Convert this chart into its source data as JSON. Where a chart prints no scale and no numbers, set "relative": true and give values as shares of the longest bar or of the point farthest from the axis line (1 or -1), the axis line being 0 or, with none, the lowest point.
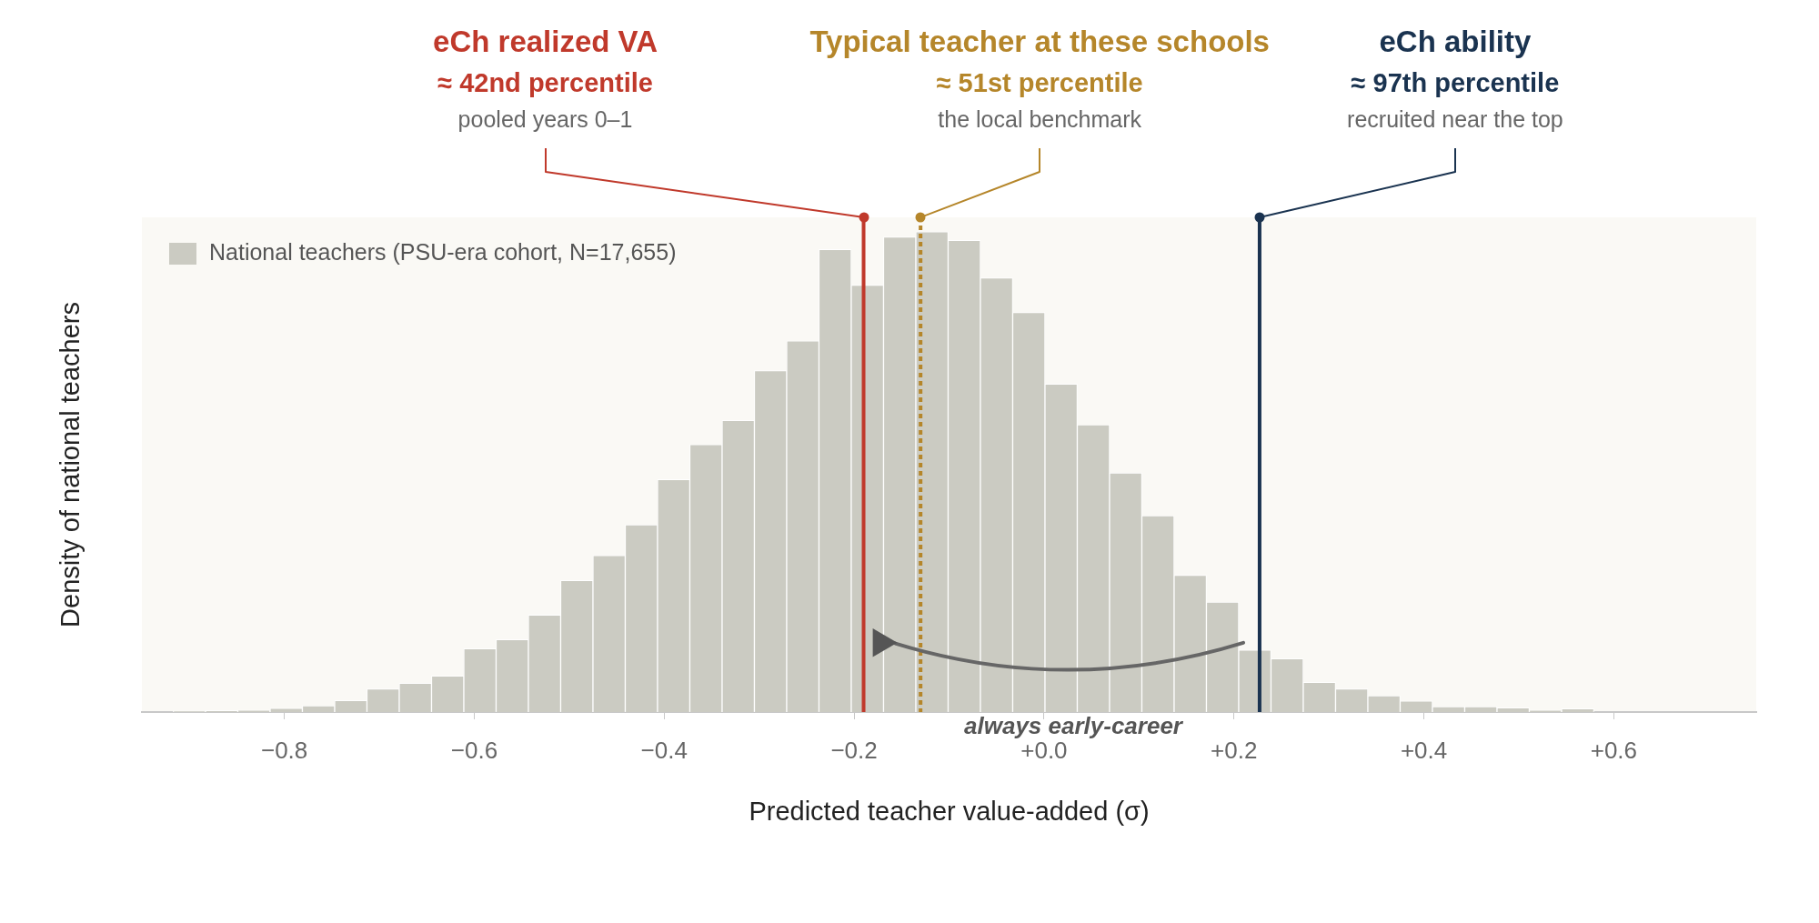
{
  "chart_data": {
    "type": "bar",
    "xlabel": "Predicted teacher value-added (σ)",
    "ylabel": "Density of national teachers",
    "relative": true,
    "x": [
      -0.9,
      -0.866,
      -0.832,
      -0.798,
      -0.764,
      -0.73,
      -0.696,
      -0.662,
      -0.628,
      -0.594,
      -0.56,
      -0.526,
      -0.492,
      -0.458,
      -0.424,
      -0.39,
      -0.356,
      -0.322,
      -0.288,
      -0.254,
      -0.22,
      -0.186,
      -0.152,
      -0.118,
      -0.084,
      -0.05,
      -0.016,
      0.018,
      0.052,
      0.086,
      0.12,
      0.154,
      0.188,
      0.222,
      0.256,
      0.29,
      0.324,
      0.358,
      0.392,
      0.426,
      0.46,
      0.494,
      0.528,
      0.562
    ],
    "series": [
      {
        "name": "National teachers (PSU-era cohort, N=17,655)",
        "color": "#cbcbc2",
        "values": [
          0.002,
          0.003,
          0.004,
          0.008,
          0.013,
          0.024,
          0.048,
          0.06,
          0.075,
          0.132,
          0.151,
          0.202,
          0.274,
          0.326,
          0.39,
          0.484,
          0.557,
          0.607,
          0.711,
          0.773,
          0.963,
          0.889,
          0.989,
          1,
          0.982,
          0.904,
          0.832,
          0.683,
          0.598,
          0.498,
          0.409,
          0.285,
          0.229,
          0.129,
          0.111,
          0.062,
          0.048,
          0.034,
          0.023,
          0.011,
          0.011,
          0.009,
          0.004,
          0.007
        ]
      }
    ],
    "xlim": [
      -0.95,
      0.75
    ],
    "xticks": [
      {
        "value": -0.8,
        "label": "−0.8"
      },
      {
        "value": -0.6,
        "label": "−0.6"
      },
      {
        "value": -0.4,
        "label": "−0.4"
      },
      {
        "value": -0.2,
        "label": "−0.2"
      },
      {
        "value": 0,
        "label": "+0.0"
      },
      {
        "value": 0.2,
        "label": "+0.2"
      },
      {
        "value": 0.4,
        "label": "+0.4"
      },
      {
        "value": 0.6,
        "label": "+0.6"
      }
    ],
    "ref_lines": [
      {
        "axis": "x",
        "value": -0.19,
        "label": "eCh realized VA",
        "color": "#c0392b",
        "line_style": "solid"
      },
      {
        "axis": "x",
        "value": -0.13,
        "label": "Typical teacher at these schools",
        "color": "#b5862a",
        "line_style": "dotted"
      },
      {
        "axis": "x",
        "value": 0.227,
        "label": "eCh ability",
        "color": "#1a3350",
        "line_style": "solid"
      }
    ],
    "annotations": [
      "≈ 42nd percentile",
      "pooled years 0–1",
      "≈ 51st percentile",
      "the local benchmark",
      "≈ 97th percentile",
      "recruited near the top",
      "always early-career"
    ],
    "grid": false,
    "legend": "top left"
  }
}
